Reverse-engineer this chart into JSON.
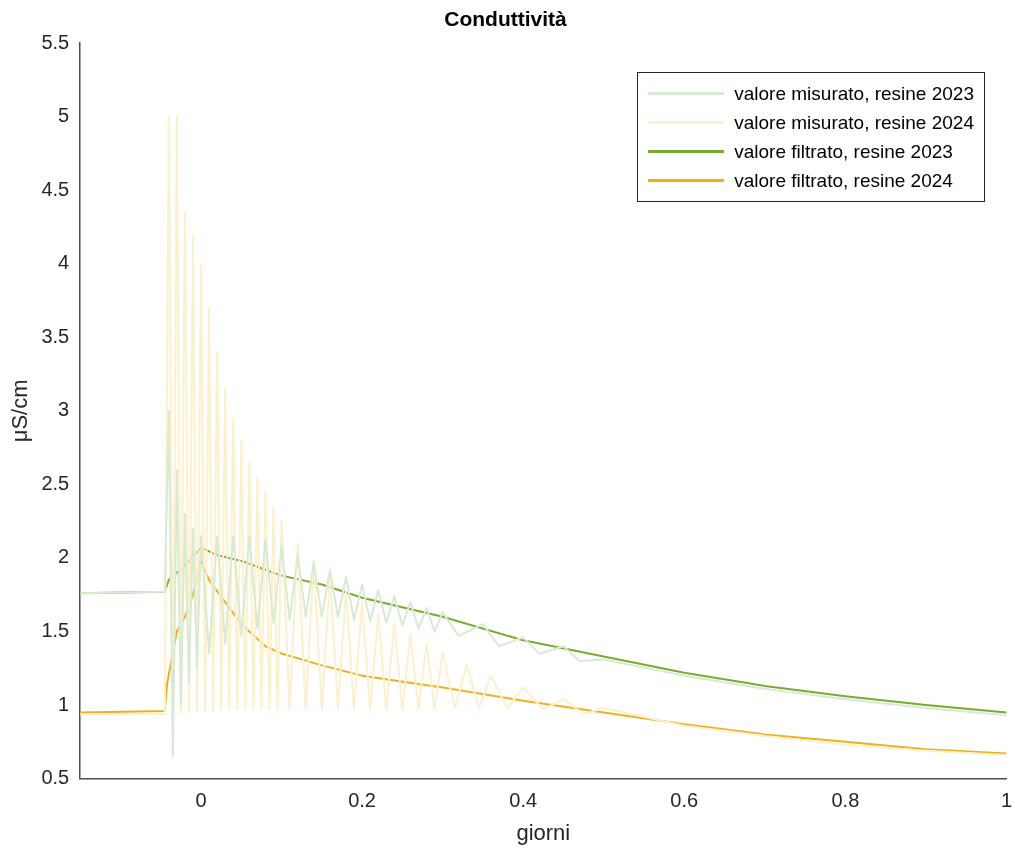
{
  "chart_data": {
    "type": "line",
    "title": "Conduttività",
    "xlabel": "giorni",
    "ylabel": "μS/cm",
    "xlim": [
      -0.15,
      1
    ],
    "xticks": [
      0,
      0.2,
      0.4,
      0.6,
      0.8,
      1
    ],
    "ylim": [
      0.5,
      5.5
    ],
    "yticks": [
      0.5,
      1,
      1.5,
      2,
      2.5,
      3,
      3.5,
      4,
      4.5,
      5,
      5.5
    ],
    "grid": false,
    "legend": "top right",
    "marker": "none",
    "line_style": "solid",
    "series": [
      {
        "name": "valore misurato, resine 2023",
        "color": "#d9ead3",
        "x": [
          -0.15,
          -0.045,
          -0.04,
          -0.035,
          -0.03,
          -0.025,
          -0.02,
          -0.015,
          -0.01,
          -0.005,
          0,
          0.01,
          0.02,
          0.03,
          0.04,
          0.05,
          0.06,
          0.07,
          0.08,
          0.09,
          0.1,
          0.11,
          0.12,
          0.13,
          0.14,
          0.15,
          0.16,
          0.17,
          0.18,
          0.19,
          0.2,
          0.21,
          0.22,
          0.23,
          0.24,
          0.25,
          0.26,
          0.27,
          0.28,
          0.29,
          0.3,
          0.32,
          0.35,
          0.37,
          0.4,
          0.42,
          0.45,
          0.47,
          0.5,
          0.6,
          0.7,
          0.8,
          0.9,
          1
        ],
        "values": [
          1.76,
          1.77,
          3.0,
          0.65,
          2.6,
          1.0,
          2.3,
          1.15,
          2.2,
          1.25,
          2.15,
          1.35,
          2.15,
          1.42,
          2.15,
          1.47,
          2.15,
          1.52,
          2.12,
          1.56,
          2.08,
          1.58,
          2.02,
          1.6,
          1.97,
          1.6,
          1.92,
          1.6,
          1.87,
          1.58,
          1.82,
          1.57,
          1.78,
          1.56,
          1.74,
          1.54,
          1.7,
          1.52,
          1.66,
          1.5,
          1.63,
          1.47,
          1.55,
          1.4,
          1.46,
          1.35,
          1.4,
          1.3,
          1.31,
          1.2,
          1.11,
          1.04,
          0.98,
          0.93
        ]
      },
      {
        "name": "valore misurato, resine 2024",
        "color": "#fdf0cc",
        "x": [
          -0.15,
          -0.045,
          -0.04,
          -0.035,
          -0.03,
          -0.025,
          -0.02,
          -0.015,
          -0.01,
          -0.005,
          0,
          0.005,
          0.01,
          0.015,
          0.02,
          0.025,
          0.03,
          0.035,
          0.04,
          0.045,
          0.05,
          0.055,
          0.06,
          0.065,
          0.07,
          0.075,
          0.08,
          0.085,
          0.09,
          0.095,
          0.1,
          0.11,
          0.12,
          0.13,
          0.14,
          0.15,
          0.16,
          0.17,
          0.18,
          0.19,
          0.2,
          0.21,
          0.22,
          0.23,
          0.24,
          0.25,
          0.26,
          0.27,
          0.28,
          0.29,
          0.3,
          0.315,
          0.33,
          0.345,
          0.36,
          0.38,
          0.4,
          0.425,
          0.45,
          0.475,
          0.5,
          0.6,
          0.7,
          0.8,
          0.9,
          1
        ],
        "values": [
          0.94,
          0.94,
          5.0,
          0.8,
          5.0,
          0.95,
          4.35,
          0.95,
          4.2,
          0.96,
          4.0,
          0.96,
          3.7,
          0.96,
          3.4,
          0.97,
          3.15,
          0.97,
          2.95,
          0.97,
          2.8,
          0.97,
          2.65,
          0.97,
          2.55,
          0.97,
          2.45,
          0.97,
          2.35,
          0.97,
          2.25,
          0.97,
          2.1,
          0.97,
          1.98,
          0.97,
          1.88,
          0.97,
          1.78,
          0.97,
          1.7,
          0.97,
          1.62,
          0.97,
          1.55,
          0.97,
          1.48,
          0.97,
          1.42,
          0.97,
          1.36,
          0.98,
          1.27,
          0.98,
          1.2,
          0.98,
          1.12,
          0.97,
          1.04,
          0.94,
          0.98,
          0.86,
          0.79,
          0.73,
          0.69,
          0.66
        ]
      },
      {
        "name": "valore filtrato, resine 2023",
        "color": "#77ac30",
        "x": [
          -0.15,
          -0.045,
          -0.04,
          -0.02,
          0,
          0.02,
          0.05,
          0.1,
          0.15,
          0.2,
          0.3,
          0.4,
          0.5,
          0.6,
          0.7,
          0.8,
          0.9,
          1
        ],
        "values": [
          1.76,
          1.77,
          1.85,
          1.95,
          2.07,
          2.02,
          1.98,
          1.88,
          1.82,
          1.73,
          1.6,
          1.44,
          1.33,
          1.22,
          1.13,
          1.06,
          1.0,
          0.95
        ]
      },
      {
        "name": "valore filtrato, resine 2024",
        "color": "#edb120",
        "x": [
          -0.15,
          -0.045,
          -0.042,
          -0.03,
          -0.02,
          -0.01,
          0,
          0.01,
          0.03,
          0.05,
          0.08,
          0.1,
          0.15,
          0.2,
          0.3,
          0.4,
          0.5,
          0.6,
          0.7,
          0.8,
          0.9,
          1
        ],
        "values": [
          0.95,
          0.96,
          1.15,
          1.5,
          1.6,
          1.75,
          1.98,
          1.85,
          1.7,
          1.55,
          1.4,
          1.35,
          1.27,
          1.2,
          1.12,
          1.03,
          0.95,
          0.87,
          0.8,
          0.75,
          0.7,
          0.67
        ]
      }
    ]
  }
}
